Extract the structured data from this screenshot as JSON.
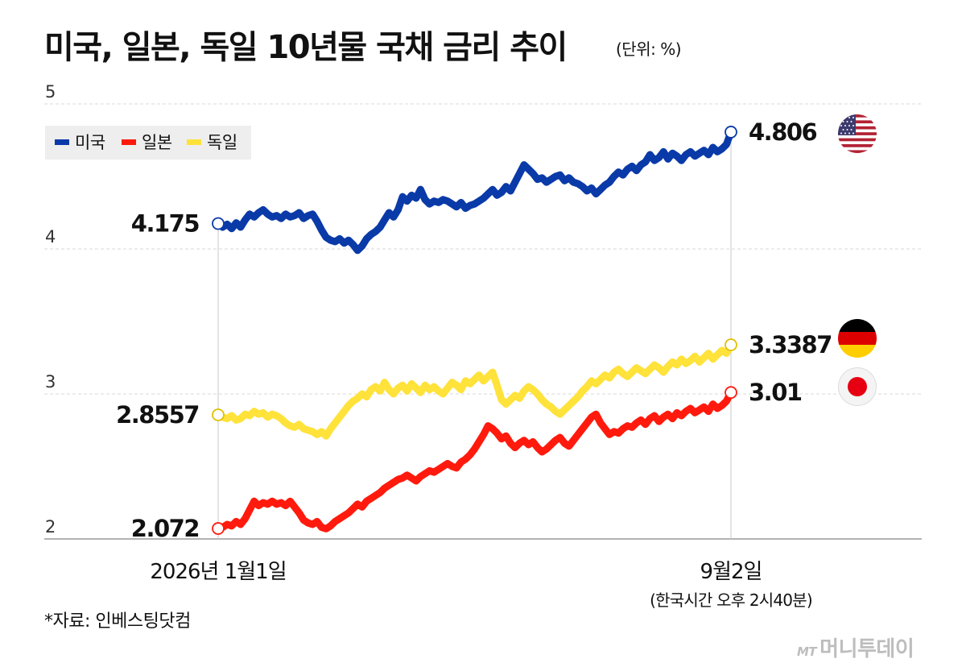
{
  "header": {
    "title": "미국, 일본, 독일 10년물 국채 금리 추이",
    "unit": "(단위: %)"
  },
  "footer": {
    "source": "*자료: 인베스팅닷컴",
    "brand_logo": "MT",
    "brand_name": "머니투데이"
  },
  "flags": [
    "us-flag-icon",
    "germany-flag-icon",
    "japan-flag-icon"
  ],
  "colors": {
    "us": "#0a3aa8",
    "jp": "#ff1a0d",
    "de": "#ffe23a",
    "grid": "#d8d8d8",
    "axis": "#999999"
  },
  "chart_data": {
    "type": "line",
    "title": "미국, 일본, 독일 10년물 국채 금리 추이",
    "ylabel": "",
    "ylim": [
      2,
      5
    ],
    "yticks": [
      2,
      3,
      4,
      5
    ],
    "xtick_labels": [
      {
        "label": "2026년 1월1일",
        "sub": ""
      },
      {
        "label": "9월2일",
        "sub": "(한국시간 오후 2시40분)"
      }
    ],
    "grid": true,
    "legend_position": "top-left",
    "series": [
      {
        "name": "미국",
        "color": "#0a3aa8",
        "start_label": "4.175",
        "end_label": "4.806",
        "values": [
          4.175,
          4.15,
          4.17,
          4.14,
          4.18,
          4.15,
          4.2,
          4.24,
          4.22,
          4.25,
          4.27,
          4.24,
          4.22,
          4.23,
          4.21,
          4.24,
          4.22,
          4.23,
          4.25,
          4.21,
          4.23,
          4.24,
          4.19,
          4.13,
          4.08,
          4.06,
          4.05,
          4.07,
          4.04,
          4.06,
          4.03,
          3.99,
          4.02,
          4.07,
          4.1,
          4.12,
          4.15,
          4.2,
          4.25,
          4.22,
          4.27,
          4.36,
          4.33,
          4.37,
          4.35,
          4.41,
          4.34,
          4.31,
          4.33,
          4.32,
          4.34,
          4.33,
          4.31,
          4.29,
          4.32,
          4.28,
          4.3,
          4.31,
          4.33,
          4.35,
          4.38,
          4.41,
          4.37,
          4.39,
          4.43,
          4.4,
          4.46,
          4.52,
          4.58,
          4.55,
          4.52,
          4.48,
          4.49,
          4.46,
          4.48,
          4.5,
          4.51,
          4.47,
          4.49,
          4.46,
          4.45,
          4.43,
          4.4,
          4.42,
          4.38,
          4.41,
          4.44,
          4.46,
          4.5,
          4.53,
          4.51,
          4.55,
          4.57,
          4.54,
          4.58,
          4.6,
          4.65,
          4.61,
          4.63,
          4.67,
          4.62,
          4.66,
          4.64,
          4.61,
          4.65,
          4.67,
          4.64,
          4.66,
          4.68,
          4.65,
          4.7,
          4.67,
          4.69,
          4.72,
          4.806
        ]
      },
      {
        "name": "일본",
        "color": "#ff1a0d",
        "start_label": "2.072",
        "end_label": "3.01",
        "values": [
          2.072,
          2.08,
          2.1,
          2.09,
          2.12,
          2.1,
          2.14,
          2.2,
          2.26,
          2.23,
          2.25,
          2.24,
          2.26,
          2.24,
          2.25,
          2.23,
          2.26,
          2.22,
          2.18,
          2.13,
          2.11,
          2.1,
          2.12,
          2.08,
          2.07,
          2.09,
          2.12,
          2.14,
          2.16,
          2.18,
          2.21,
          2.24,
          2.22,
          2.26,
          2.28,
          2.3,
          2.32,
          2.35,
          2.37,
          2.39,
          2.41,
          2.42,
          2.44,
          2.42,
          2.4,
          2.43,
          2.45,
          2.47,
          2.46,
          2.48,
          2.5,
          2.52,
          2.5,
          2.49,
          2.53,
          2.55,
          2.58,
          2.62,
          2.67,
          2.72,
          2.78,
          2.76,
          2.73,
          2.69,
          2.71,
          2.66,
          2.63,
          2.66,
          2.68,
          2.65,
          2.67,
          2.63,
          2.6,
          2.62,
          2.65,
          2.68,
          2.7,
          2.66,
          2.64,
          2.68,
          2.72,
          2.76,
          2.8,
          2.84,
          2.86,
          2.8,
          2.76,
          2.72,
          2.74,
          2.73,
          2.76,
          2.78,
          2.77,
          2.8,
          2.82,
          2.79,
          2.83,
          2.85,
          2.81,
          2.84,
          2.86,
          2.83,
          2.87,
          2.85,
          2.88,
          2.9,
          2.87,
          2.89,
          2.91,
          2.88,
          2.93,
          2.9,
          2.92,
          2.95,
          3.01
        ]
      },
      {
        "name": "독일",
        "color": "#ffe23a",
        "start_label": "2.8557",
        "end_label": "3.3387",
        "values": [
          2.8557,
          2.84,
          2.83,
          2.85,
          2.82,
          2.83,
          2.86,
          2.85,
          2.88,
          2.86,
          2.87,
          2.84,
          2.86,
          2.85,
          2.83,
          2.8,
          2.78,
          2.77,
          2.79,
          2.76,
          2.75,
          2.74,
          2.72,
          2.74,
          2.71,
          2.76,
          2.8,
          2.84,
          2.88,
          2.92,
          2.95,
          2.97,
          3.0,
          2.98,
          3.03,
          3.05,
          3.02,
          3.08,
          3.03,
          3.0,
          3.04,
          3.06,
          3.02,
          3.07,
          3.04,
          3.01,
          3.06,
          3.03,
          3.05,
          3.02,
          3.0,
          3.04,
          3.08,
          3.06,
          3.03,
          3.09,
          3.07,
          3.1,
          3.13,
          3.09,
          3.12,
          3.15,
          3.06,
          2.96,
          2.93,
          2.96,
          2.99,
          2.97,
          3.02,
          3.05,
          3.03,
          3.0,
          2.96,
          2.93,
          2.91,
          2.88,
          2.86,
          2.89,
          2.92,
          2.95,
          2.98,
          3.02,
          3.05,
          3.09,
          3.07,
          3.1,
          3.13,
          3.11,
          3.15,
          3.17,
          3.14,
          3.12,
          3.15,
          3.18,
          3.16,
          3.14,
          3.17,
          3.2,
          3.18,
          3.15,
          3.19,
          3.22,
          3.2,
          3.24,
          3.21,
          3.23,
          3.26,
          3.22,
          3.25,
          3.28,
          3.24,
          3.27,
          3.3,
          3.28,
          3.3387
        ]
      }
    ]
  }
}
